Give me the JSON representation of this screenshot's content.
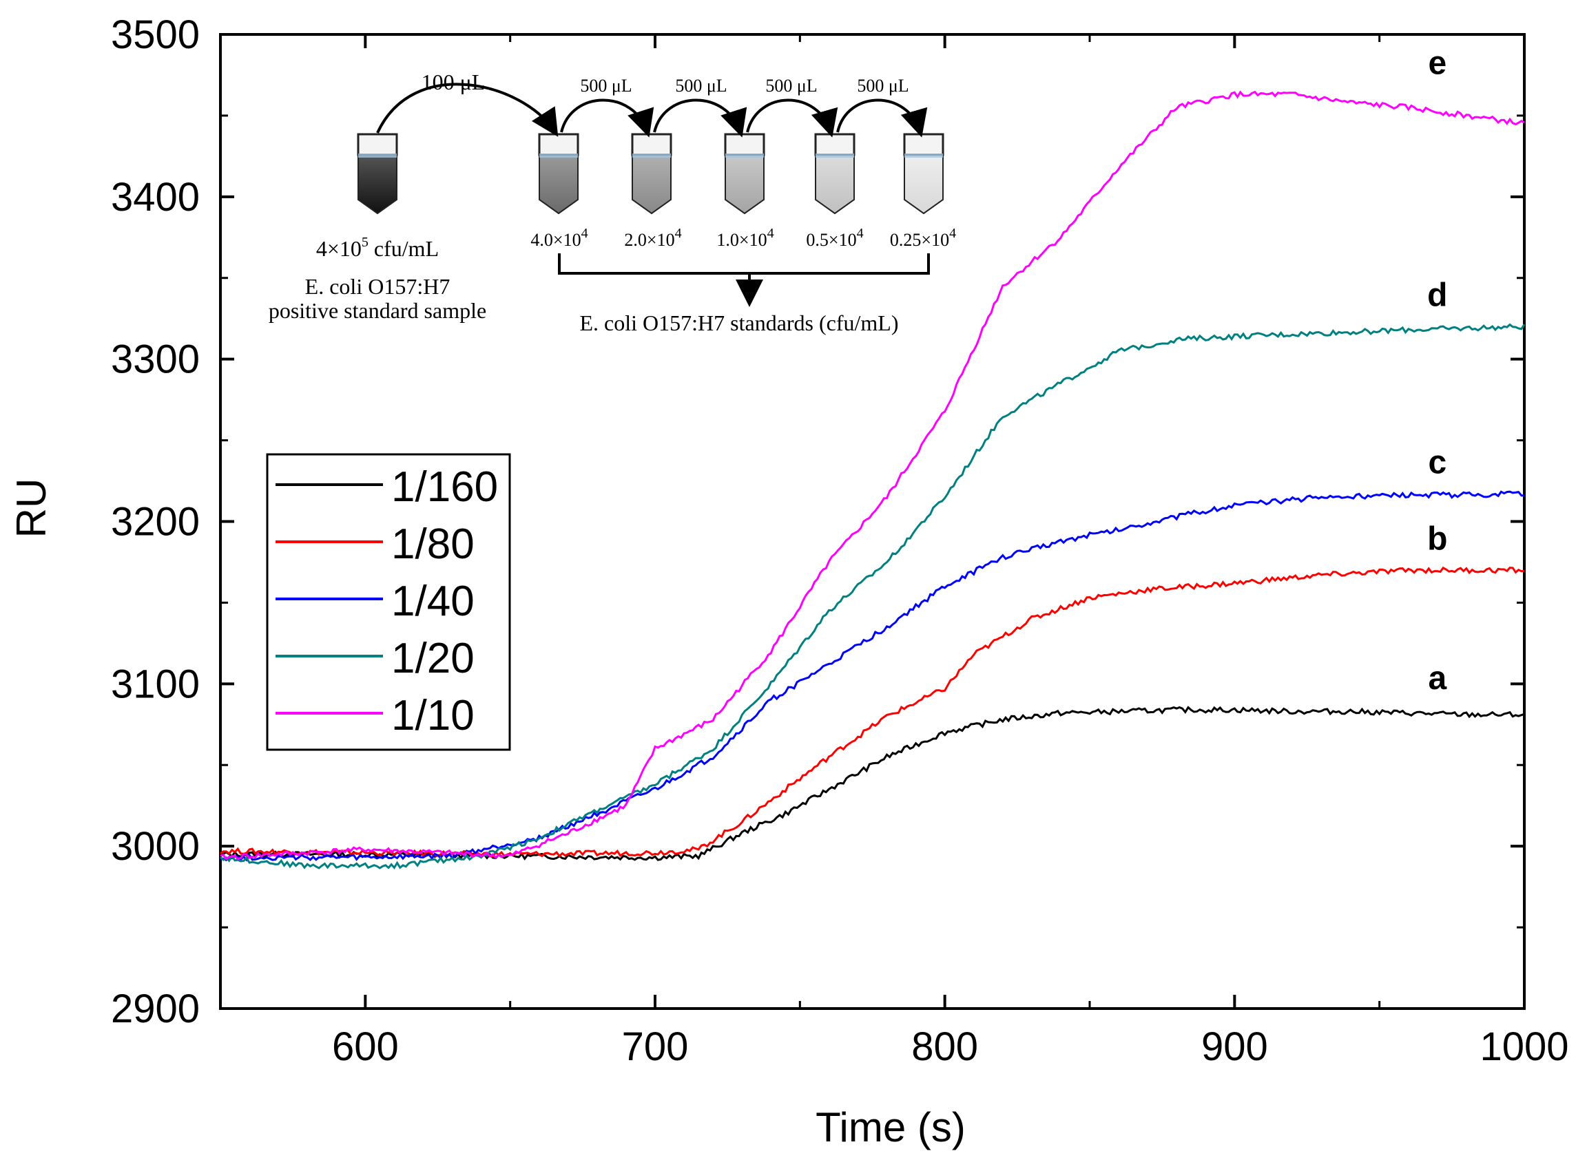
{
  "chart_data": {
    "type": "line",
    "title": "",
    "xlabel": "Time (s)",
    "ylabel": "RU",
    "xlim": [
      550,
      1000
    ],
    "ylim": [
      2900,
      3500
    ],
    "xticks": [
      600,
      700,
      800,
      900,
      1000
    ],
    "yticks": [
      2900,
      3000,
      3100,
      3200,
      3300,
      3400,
      3500
    ],
    "grid": false,
    "legend_position": "left-middle",
    "series": [
      {
        "name": "1/160",
        "color": "#000000",
        "tag": "a",
        "points": [
          [
            550,
            2995
          ],
          [
            600,
            2995
          ],
          [
            650,
            2994
          ],
          [
            700,
            2993
          ],
          [
            715,
            2994
          ],
          [
            730,
            3008
          ],
          [
            745,
            3020
          ],
          [
            760,
            3035
          ],
          [
            780,
            3055
          ],
          [
            800,
            3070
          ],
          [
            820,
            3078
          ],
          [
            840,
            3082
          ],
          [
            860,
            3083
          ],
          [
            880,
            3084
          ],
          [
            900,
            3084
          ],
          [
            920,
            3083
          ],
          [
            940,
            3083
          ],
          [
            960,
            3082
          ],
          [
            980,
            3081
          ],
          [
            1000,
            3081
          ]
        ]
      },
      {
        "name": "1/80",
        "color": "#ff0000",
        "tag": "b",
        "points": [
          [
            550,
            2997
          ],
          [
            600,
            2996
          ],
          [
            650,
            2995
          ],
          [
            700,
            2996
          ],
          [
            715,
            2998
          ],
          [
            730,
            3015
          ],
          [
            745,
            3035
          ],
          [
            760,
            3055
          ],
          [
            780,
            3080
          ],
          [
            800,
            3097
          ],
          [
            810,
            3118
          ],
          [
            830,
            3140
          ],
          [
            850,
            3153
          ],
          [
            870,
            3158
          ],
          [
            900,
            3162
          ],
          [
            930,
            3167
          ],
          [
            960,
            3170
          ],
          [
            1000,
            3170
          ]
        ]
      },
      {
        "name": "1/40",
        "color": "#0000ff",
        "tag": "c",
        "points": [
          [
            550,
            2993
          ],
          [
            600,
            2993
          ],
          [
            630,
            2994
          ],
          [
            660,
            3005
          ],
          [
            680,
            3020
          ],
          [
            700,
            3035
          ],
          [
            720,
            3055
          ],
          [
            740,
            3090
          ],
          [
            760,
            3112
          ],
          [
            780,
            3135
          ],
          [
            800,
            3160
          ],
          [
            820,
            3178
          ],
          [
            840,
            3188
          ],
          [
            860,
            3195
          ],
          [
            880,
            3203
          ],
          [
            900,
            3210
          ],
          [
            930,
            3215
          ],
          [
            960,
            3216
          ],
          [
            1000,
            3217
          ]
        ]
      },
      {
        "name": "1/20",
        "color": "#008080",
        "tag": "d",
        "points": [
          [
            550,
            2993
          ],
          [
            580,
            2988
          ],
          [
            610,
            2988
          ],
          [
            640,
            2994
          ],
          [
            660,
            3005
          ],
          [
            680,
            3022
          ],
          [
            700,
            3038
          ],
          [
            720,
            3060
          ],
          [
            740,
            3100
          ],
          [
            760,
            3145
          ],
          [
            780,
            3175
          ],
          [
            800,
            3215
          ],
          [
            820,
            3265
          ],
          [
            840,
            3285
          ],
          [
            860,
            3305
          ],
          [
            880,
            3312
          ],
          [
            900,
            3314
          ],
          [
            930,
            3316
          ],
          [
            960,
            3318
          ],
          [
            1000,
            3320
          ]
        ]
      },
      {
        "name": "1/10",
        "color": "#ff00ff",
        "tag": "e",
        "points": [
          [
            550,
            2993
          ],
          [
            600,
            2998
          ],
          [
            650,
            2994
          ],
          [
            670,
            3008
          ],
          [
            690,
            3025
          ],
          [
            700,
            3060
          ],
          [
            720,
            3078
          ],
          [
            740,
            3120
          ],
          [
            760,
            3175
          ],
          [
            780,
            3215
          ],
          [
            800,
            3268
          ],
          [
            820,
            3345
          ],
          [
            840,
            3375
          ],
          [
            860,
            3418
          ],
          [
            880,
            3455
          ],
          [
            900,
            3463
          ],
          [
            920,
            3463
          ],
          [
            940,
            3458
          ],
          [
            960,
            3455
          ],
          [
            980,
            3450
          ],
          [
            1000,
            3445
          ]
        ]
      }
    ]
  },
  "inset": {
    "stock_volume": "100 μL",
    "transfer_volume": "500 μL",
    "stock_conc_base": "4×10",
    "stock_conc_exp": "5",
    "stock_conc_unit": " cfu/mL",
    "stock_line2": "E. coli O157:H7",
    "stock_line3": "positive standard sample",
    "dilutions": [
      {
        "base": "4.0×10",
        "exp": "4"
      },
      {
        "base": "2.0×10",
        "exp": "4"
      },
      {
        "base": "1.0×10",
        "exp": "4"
      },
      {
        "base": "0.5×10",
        "exp": "4"
      },
      {
        "base": "0.25×10",
        "exp": "4"
      }
    ],
    "standards_label": "E. coli O157:H7 standards (cfu/mL)"
  }
}
